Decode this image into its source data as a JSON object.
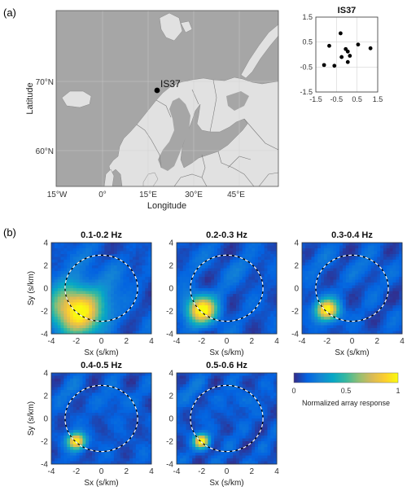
{
  "panel_labels": {
    "a": "(a)",
    "b": "(b)"
  },
  "map": {
    "xlabel": "Longitude",
    "ylabel": "Latitude",
    "x_ticks": [
      "15°W",
      "0°",
      "15°E",
      "30°E",
      "45°E"
    ],
    "y_ticks": [
      "60°N",
      "70°N"
    ],
    "station": {
      "name": "IS37",
      "lon": 18.5,
      "lat": 69.1
    },
    "colors": {
      "ocean": "#a6a6a6",
      "land": "#e1e1e1",
      "border": "#7a7a7a",
      "grid": "#cfcfcf"
    }
  },
  "chart_data": [
    {
      "type": "scatter",
      "title": "IS37",
      "xlim": [
        -1.5,
        1.5
      ],
      "ylim": [
        -1.5,
        1.5
      ],
      "x_ticks": [
        "-1.5",
        "-0.5",
        "0.5",
        "1.5"
      ],
      "y_ticks": [
        "1.5",
        "0.5",
        "-0.5",
        "-1.5"
      ],
      "grid": true,
      "points": [
        [
          -0.3,
          0.85
        ],
        [
          -0.85,
          0.35
        ],
        [
          -0.05,
          0.22
        ],
        [
          -0.6,
          -0.45
        ],
        [
          -0.25,
          -0.1
        ],
        [
          0.15,
          -0.05
        ],
        [
          0.05,
          0.12
        ],
        [
          0.05,
          -0.3
        ],
        [
          0.55,
          0.4
        ],
        [
          1.15,
          0.25
        ],
        [
          -1.1,
          -0.42
        ]
      ]
    },
    {
      "type": "heatmap",
      "title": "0.1-0.2 Hz",
      "xlabel": "Sx (s/km)",
      "ylabel": "Sy (s/km)",
      "xlim": [
        -4,
        4
      ],
      "ylim": [
        -4,
        4
      ],
      "x_ticks": [
        "-4",
        "-2",
        "0",
        "2",
        "4"
      ],
      "y_ticks": [
        "4",
        "2",
        "0",
        "-2",
        "-4"
      ],
      "peak": {
        "sx": -1.9,
        "sy": -1.9,
        "spread": 1.5
      },
      "circle_radius": 2.9
    },
    {
      "type": "heatmap",
      "title": "0.2-0.3 Hz",
      "xlabel": "Sx (s/km)",
      "ylabel": "Sy (s/km)",
      "xlim": [
        -4,
        4
      ],
      "ylim": [
        -4,
        4
      ],
      "x_ticks": [
        "-4",
        "-2",
        "0",
        "2",
        "4"
      ],
      "y_ticks": [
        "4",
        "2",
        "0",
        "-2",
        "-4"
      ],
      "peak": {
        "sx": -2.0,
        "sy": -1.9,
        "spread": 0.85
      },
      "circle_radius": 2.9
    },
    {
      "type": "heatmap",
      "title": "0.3-0.4 Hz",
      "xlabel": "Sx (s/km)",
      "ylabel": "Sy (s/km)",
      "xlim": [
        -4,
        4
      ],
      "ylim": [
        -4,
        4
      ],
      "x_ticks": [
        "-4",
        "-2",
        "0",
        "2",
        "4"
      ],
      "y_ticks": [
        "4",
        "2",
        "0",
        "-2",
        "-4"
      ],
      "peak": {
        "sx": -2.0,
        "sy": -1.9,
        "spread": 0.65
      },
      "circle_radius": 2.9
    },
    {
      "type": "heatmap",
      "title": "0.4-0.5 Hz",
      "xlabel": "Sx (s/km)",
      "ylabel": "Sy (s/km)",
      "xlim": [
        -4,
        4
      ],
      "ylim": [
        -4,
        4
      ],
      "x_ticks": [
        "-4",
        "-2",
        "0",
        "2",
        "4"
      ],
      "y_ticks": [
        "4",
        "2",
        "0",
        "-2",
        "-4"
      ],
      "peak": {
        "sx": -2.0,
        "sy": -2.0,
        "spread": 0.5
      },
      "circle_radius": 2.9
    },
    {
      "type": "heatmap",
      "title": "0.5-0.6 Hz",
      "xlabel": "Sx (s/km)",
      "ylabel": "Sy (s/km)",
      "xlim": [
        -4,
        4
      ],
      "ylim": [
        -4,
        4
      ],
      "x_ticks": [
        "-4",
        "-2",
        "0",
        "2",
        "4"
      ],
      "y_ticks": [
        "4",
        "2",
        "0",
        "-2",
        "-4"
      ],
      "peak": {
        "sx": -2.0,
        "sy": -2.0,
        "spread": 0.42
      },
      "circle_radius": 2.9
    }
  ],
  "colorbar": {
    "label": "Normalized array response",
    "ticks": [
      "0",
      "0.5",
      "1"
    ],
    "colormap": [
      "#352a87",
      "#0363e1",
      "#1485d4",
      "#06a7c6",
      "#38b99e",
      "#92bf73",
      "#d9ba56",
      "#fcce2e",
      "#f9fb0e"
    ]
  }
}
